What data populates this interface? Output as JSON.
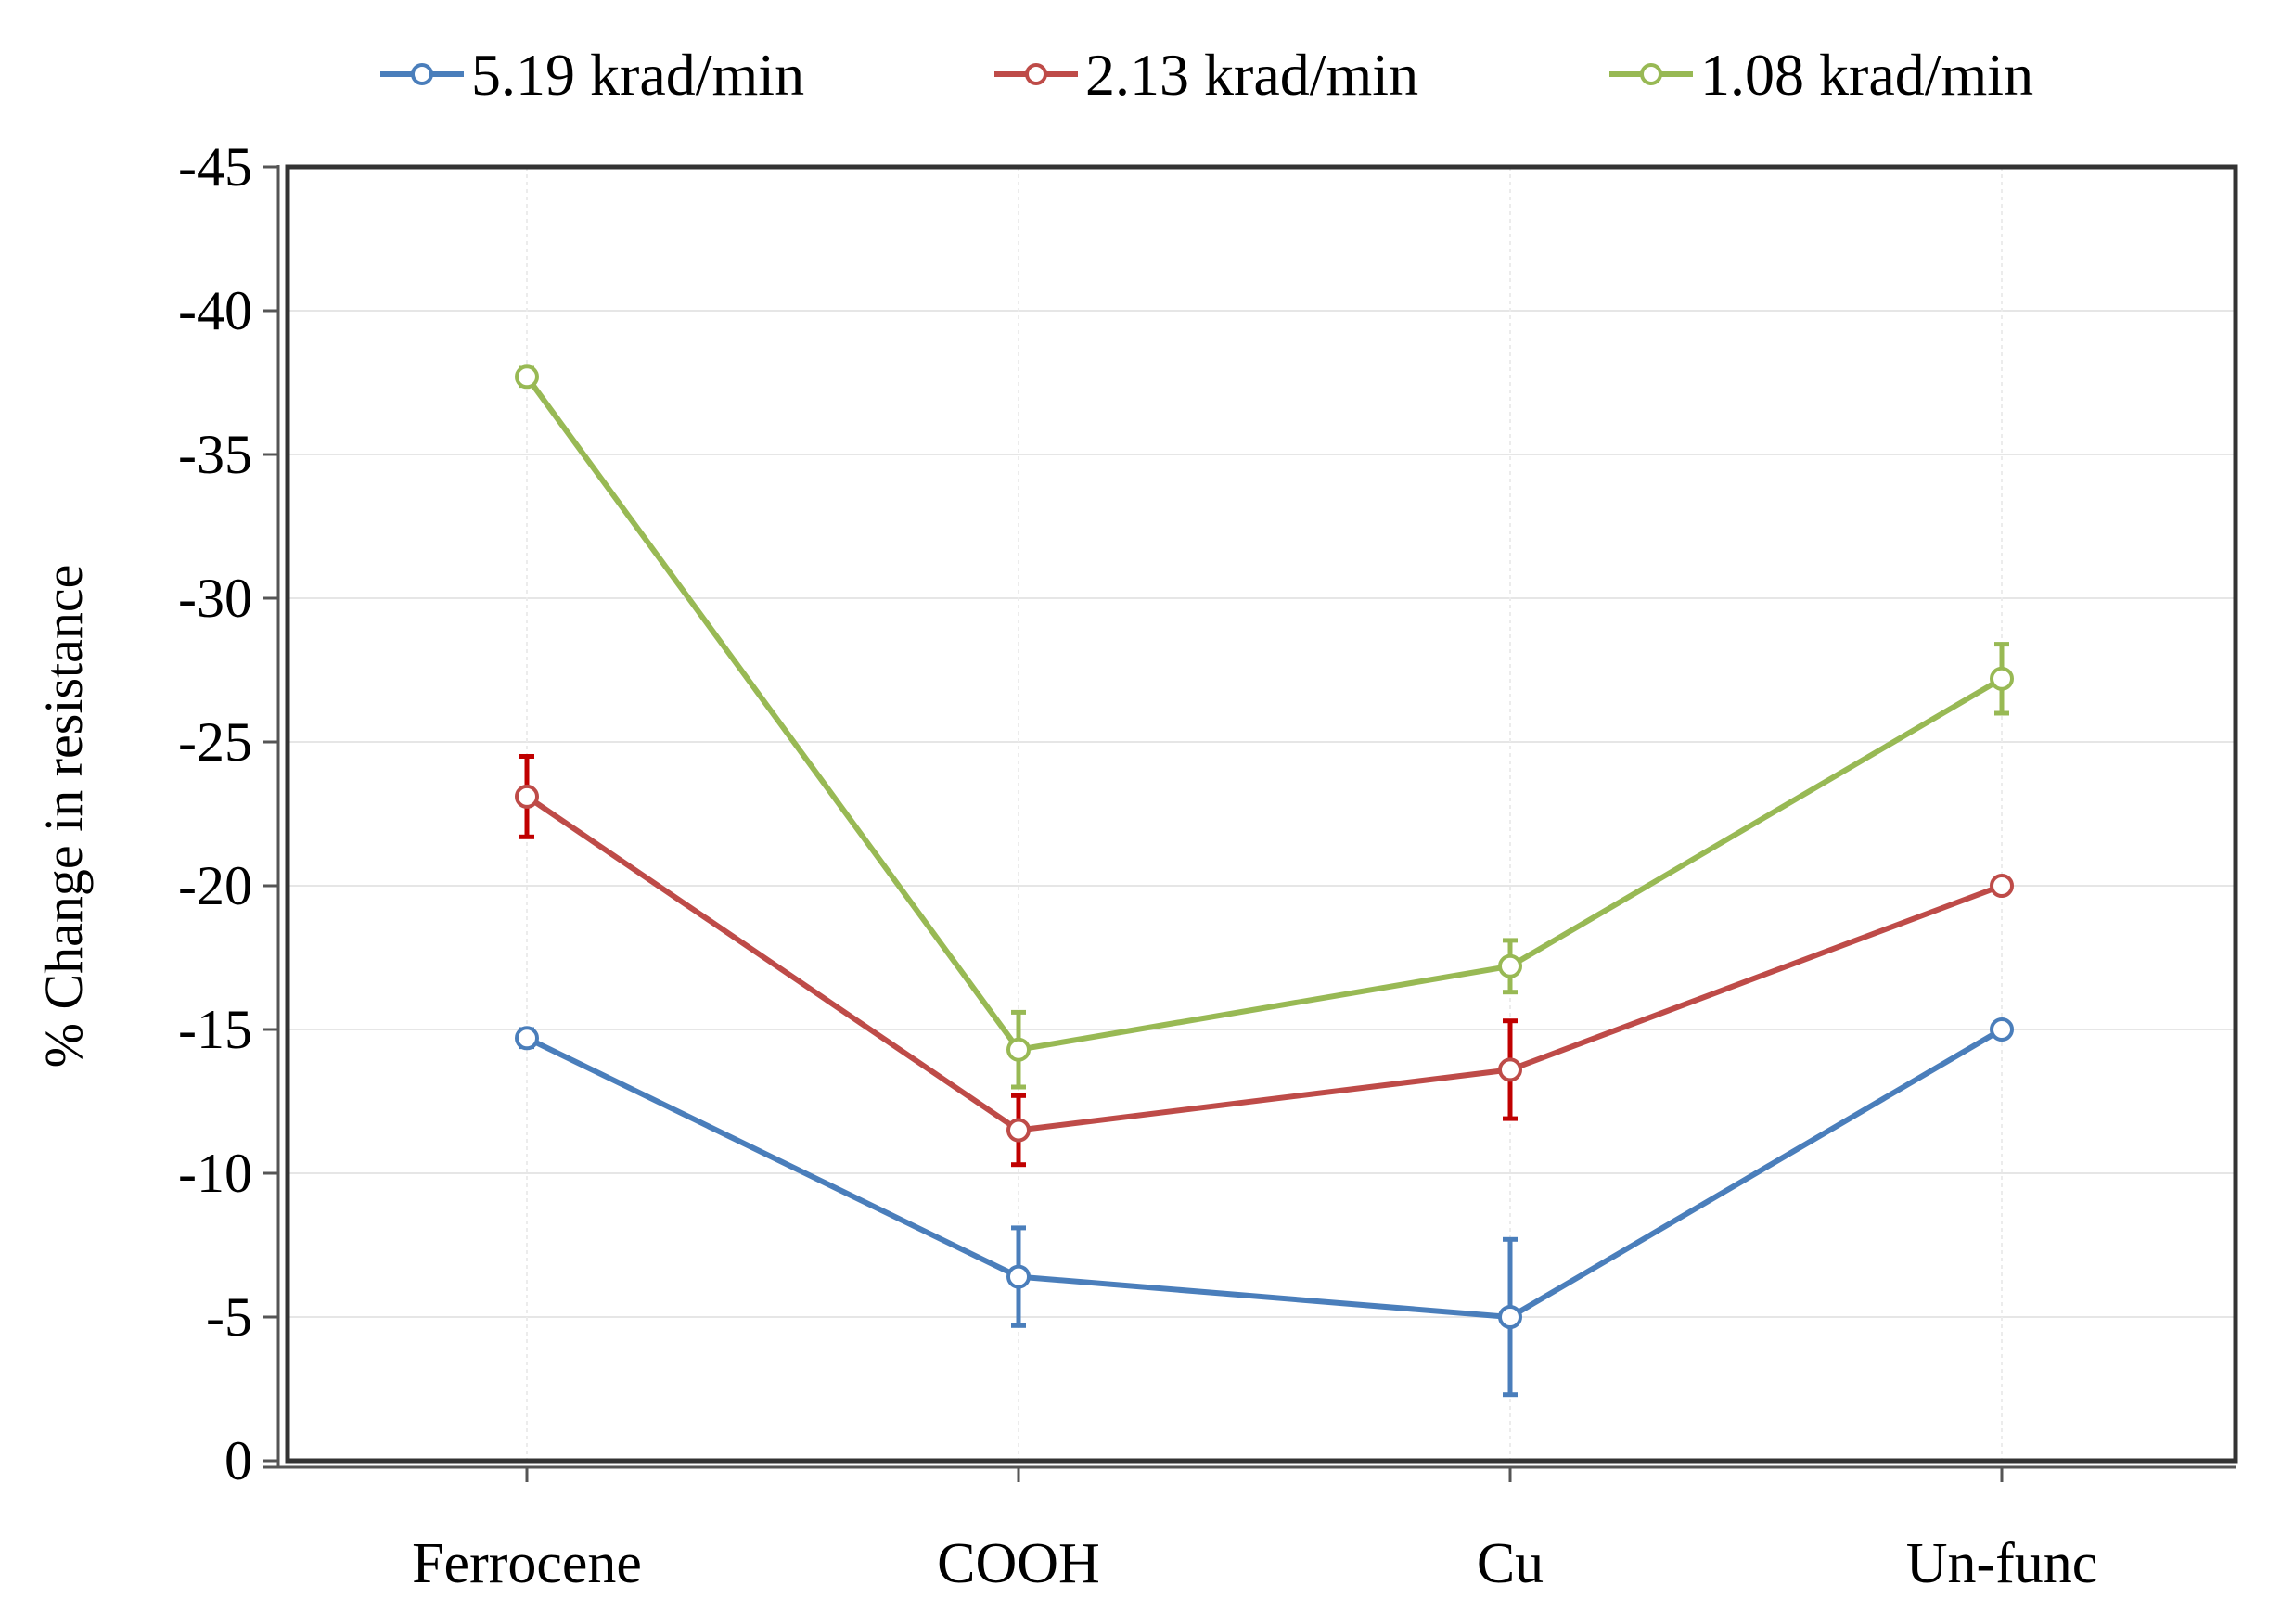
{
  "chart_data": {
    "type": "line",
    "title": "",
    "xlabel": "",
    "ylabel": "% Change in resistance",
    "categories": [
      "Ferrocene",
      "COOH",
      "Cu",
      "Un-func"
    ],
    "ylim": [
      0,
      -45
    ],
    "yticks": [
      0,
      -5,
      -10,
      -15,
      -20,
      -25,
      -30,
      -35,
      -40,
      -45
    ],
    "ytick_labels": [
      "0",
      "-5",
      "-10",
      "-15",
      "-20",
      "-25",
      "-30",
      "-35",
      "-40",
      "-45"
    ],
    "grid": true,
    "legend_position": "top",
    "series": [
      {
        "name": "5.19 krad/min",
        "color": "#4a7ebb",
        "values": [
          -14.7,
          -6.4,
          -5.0,
          -15.0
        ],
        "errors": [
          0.3,
          1.7,
          2.7,
          0.2
        ]
      },
      {
        "name": "2.13 krad/min",
        "color": "#be4b48",
        "values": [
          -23.1,
          -11.5,
          -13.6,
          -20.0
        ],
        "errors": [
          1.4,
          1.2,
          1.7,
          0.2
        ]
      },
      {
        "name": "1.08 krad/min",
        "color": "#98b954",
        "values": [
          -37.7,
          -14.3,
          -17.2,
          -27.2
        ],
        "errors": [
          0.3,
          1.3,
          0.9,
          1.2
        ]
      }
    ]
  }
}
